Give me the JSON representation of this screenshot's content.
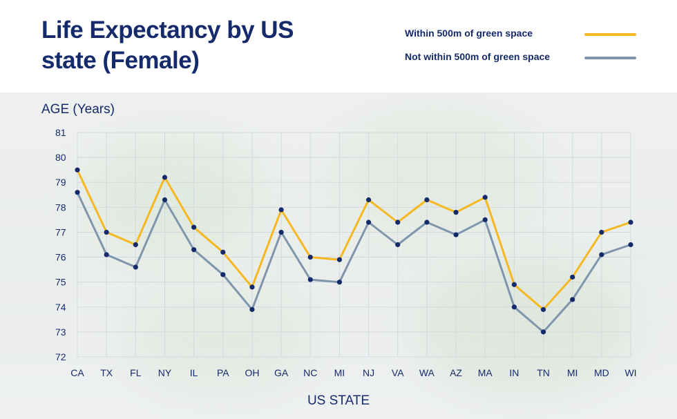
{
  "header": {
    "title": "Life Expectancy by US state (Female)"
  },
  "legend": [
    {
      "label": "Within 500m of green space",
      "color": "#f5b820"
    },
    {
      "label": "Not within 500m of green space",
      "color": "#7f95ac"
    }
  ],
  "chart_data": {
    "type": "line",
    "title": "Life Expectancy by US state (Female)",
    "xlabel": "US STATE",
    "ylabel": "AGE (Years)",
    "categories": [
      "CA",
      "TX",
      "FL",
      "NY",
      "IL",
      "PA",
      "OH",
      "GA",
      "NC",
      "MI",
      "NJ",
      "VA",
      "WA",
      "AZ",
      "MA",
      "IN",
      "TN",
      "MI",
      "MD",
      "WI"
    ],
    "ylim": [
      72,
      81
    ],
    "yticks": [
      72,
      73,
      74,
      75,
      76,
      77,
      78,
      79,
      80,
      81
    ],
    "grid": true,
    "legend_position": "top-right",
    "series": [
      {
        "name": "Within 500m of green space",
        "color": "#f5b820",
        "values": [
          79.5,
          77.0,
          76.5,
          79.2,
          77.2,
          76.2,
          74.8,
          77.9,
          76.0,
          75.9,
          78.3,
          77.4,
          78.3,
          77.8,
          78.4,
          74.9,
          73.9,
          75.2,
          77.0,
          77.4
        ]
      },
      {
        "name": "Not within 500m of green space",
        "color": "#7f95ac",
        "values": [
          78.6,
          76.1,
          75.6,
          78.3,
          76.3,
          75.3,
          73.9,
          77.0,
          75.1,
          75.0,
          77.4,
          76.5,
          77.4,
          76.9,
          77.5,
          74.0,
          73.0,
          74.3,
          76.1,
          76.5
        ]
      }
    ],
    "marker_color": "#142a6b"
  }
}
